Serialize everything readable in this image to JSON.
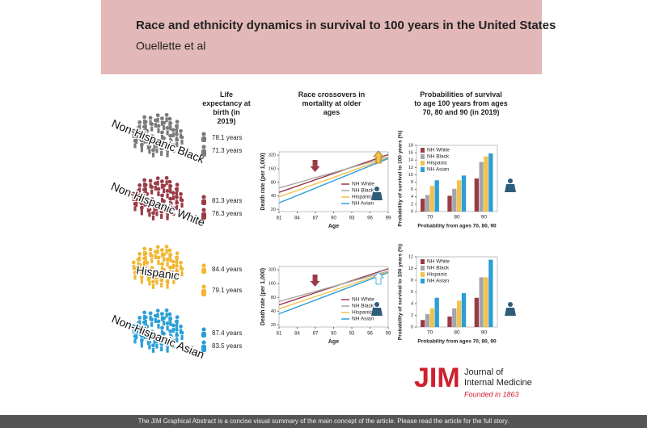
{
  "header": {
    "title": "Race and ethnicity dynamics in survival to 100 years in the United States",
    "subtitle": "Ouellette et al"
  },
  "headings": [
    "Life expectancy at birth (in 2019)",
    "Race crossovers in mortality at older ages",
    "Probabilities of survival to age 100 years from ages 70, 80 and 90 (in 2019)"
  ],
  "groups": [
    {
      "label": "Non-Hispanic Black",
      "color": "#7a7a7a",
      "values": [
        "78.1 years",
        "71.3 years"
      ]
    },
    {
      "label": "Non-Hispanic White",
      "color": "#9b3b46",
      "values": [
        "81.3 years",
        "76.3 years"
      ]
    },
    {
      "label": "Hispanic",
      "color": "#f2b632",
      "values": [
        "84.4 years",
        "79.1 years"
      ]
    },
    {
      "label": "Non-Hispanic Asian",
      "color": "#2a9fd6",
      "values": [
        "87.4 years",
        "83.5 years"
      ]
    }
  ],
  "chart_data": [
    {
      "type": "line",
      "x": [
        81,
        90,
        99
      ],
      "xlim": [
        81,
        99
      ],
      "xticks": [
        81,
        84,
        87,
        90,
        93,
        96,
        99
      ],
      "ylim": [
        18,
        380
      ],
      "yticks": [
        20,
        40,
        80,
        160,
        320
      ],
      "log_scale": true,
      "xlabel": "Age",
      "ylabel": "Death rate (per 1,000)",
      "legend": "lower right",
      "series": [
        {
          "name": "NH White",
          "color": "#9b3b46",
          "values": [
            48,
            126,
            330
          ]
        },
        {
          "name": "NH Black",
          "color": "#a6a6a6",
          "values": [
            60,
            132,
            290
          ]
        },
        {
          "name": "Hispanic",
          "color": "#f2c14e",
          "values": [
            38,
            103,
            280
          ]
        },
        {
          "name": "NH Asian",
          "color": "#2a9fd6",
          "values": [
            28,
            87,
            270
          ]
        }
      ]
    },
    {
      "type": "bar",
      "categories": [
        "70",
        "80",
        "90"
      ],
      "ylim": [
        0,
        18
      ],
      "yticks": [
        0,
        2,
        4,
        6,
        8,
        10,
        12,
        14,
        16,
        18
      ],
      "xlabel": "Probability from ages 70, 80, 90",
      "ylabel": "Probability of survival to 100 years (%)",
      "legend": "upper left",
      "series": [
        {
          "name": "NH White",
          "color": "#9b3b46",
          "values": [
            3.5,
            4.3,
            9
          ]
        },
        {
          "name": "NH Black",
          "color": "#a6a6a6",
          "values": [
            4.5,
            6.2,
            13.5
          ]
        },
        {
          "name": "Hispanic",
          "color": "#f2c14e",
          "values": [
            7,
            8.5,
            15
          ]
        },
        {
          "name": "NH Asian",
          "color": "#2a9fd6",
          "values": [
            8.5,
            9.8,
            15.8
          ]
        }
      ]
    },
    {
      "type": "line",
      "x": [
        81,
        90,
        99
      ],
      "xlim": [
        81,
        99
      ],
      "xticks": [
        81,
        84,
        87,
        90,
        93,
        96,
        99
      ],
      "ylim": [
        18,
        380
      ],
      "yticks": [
        20,
        40,
        80,
        160,
        320
      ],
      "log_scale": true,
      "xlabel": "Age",
      "ylabel": "Death rate (per 1,000)",
      "legend": "lower right",
      "series": [
        {
          "name": "NH White",
          "color": "#9b3b46",
          "values": [
            55,
            137,
            340
          ]
        },
        {
          "name": "NH Black",
          "color": "#a6a6a6",
          "values": [
            65,
            140,
            300
          ]
        },
        {
          "name": "Hispanic",
          "color": "#f2c14e",
          "values": [
            45,
            114,
            290
          ]
        },
        {
          "name": "NH Asian",
          "color": "#2a9fd6",
          "values": [
            35,
            99,
            280
          ]
        }
      ]
    },
    {
      "type": "bar",
      "categories": [
        "70",
        "80",
        "90"
      ],
      "ylim": [
        0,
        12
      ],
      "yticks": [
        0,
        2,
        4,
        6,
        8,
        10,
        12
      ],
      "xlabel": "Probability from ages 70, 80, 90",
      "ylabel": "Probability of survival to 100 years (%)",
      "legend": "upper left",
      "series": [
        {
          "name": "NH White",
          "color": "#9b3b46",
          "values": [
            1.2,
            1.8,
            5
          ]
        },
        {
          "name": "NH Black",
          "color": "#a6a6a6",
          "values": [
            2.2,
            3.2,
            8.5
          ]
        },
        {
          "name": "Hispanic",
          "color": "#f2c14e",
          "values": [
            3.2,
            4.5,
            8.5
          ]
        },
        {
          "name": "NH Asian",
          "color": "#2a9fd6",
          "values": [
            5,
            5.8,
            11.5
          ]
        }
      ]
    }
  ],
  "logo": {
    "mark": "JIM",
    "line1": "Journal of",
    "line2": "Internal Medicine",
    "founded": "Founded in 1863"
  },
  "footer": "The JIM Graphical Abstract is a concise visual summary of the main concept of the article. Please read the article for the full story."
}
